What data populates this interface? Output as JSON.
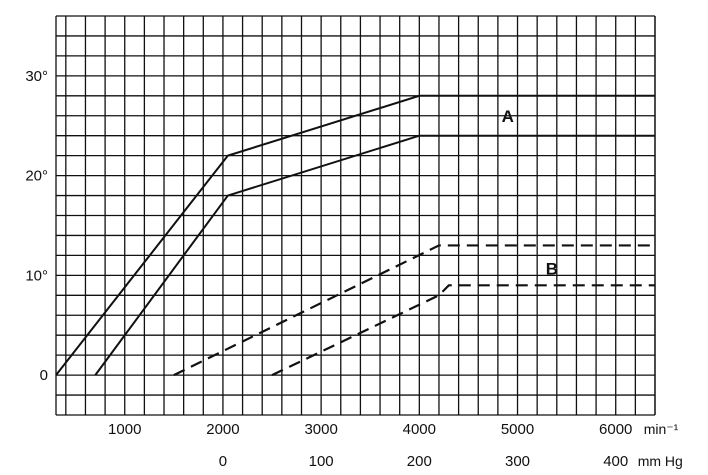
{
  "chart_data": {
    "type": "line",
    "title": "",
    "xlabel": "",
    "ylabel": "",
    "xlim": [
      300,
      6400
    ],
    "ylim": [
      -4,
      36
    ],
    "grid": true,
    "y_ticks": [
      {
        "value": 0,
        "label": "0"
      },
      {
        "value": 10,
        "label": "10°"
      },
      {
        "value": 20,
        "label": "20°"
      },
      {
        "value": 30,
        "label": "30°"
      }
    ],
    "x_ticks_rpm": {
      "values": [
        1000,
        2000,
        3000,
        4000,
        5000,
        6000
      ],
      "labels": [
        "1000",
        "2000",
        "3000",
        "4000",
        "5000",
        "6000"
      ],
      "unit": "min⁻¹"
    },
    "x_ticks_vacuum": {
      "rpm_positions": [
        2000,
        3000,
        4000,
        5000,
        6000
      ],
      "labels": [
        "0",
        "100",
        "200",
        "300",
        "400"
      ],
      "unit": "mm Hg"
    },
    "series": [
      {
        "name": "A",
        "style": "solid",
        "x": [
          300,
          2050,
          4000,
          6400
        ],
        "y": [
          0,
          22,
          28,
          28
        ]
      },
      {
        "name": "A",
        "style": "solid",
        "x": [
          700,
          2050,
          4000,
          6400
        ],
        "y": [
          0,
          18,
          24,
          24
        ]
      },
      {
        "name": "B",
        "style": "dashed",
        "x": [
          1500,
          4200,
          6400
        ],
        "y": [
          0,
          13,
          13
        ]
      },
      {
        "name": "B",
        "style": "dashed",
        "x": [
          2500,
          4200,
          4300,
          6400
        ],
        "y": [
          0,
          8,
          9,
          9
        ]
      }
    ],
    "annotations": [
      {
        "text": "A",
        "x": 4900,
        "y": 26
      },
      {
        "text": "B",
        "x": 5350,
        "y": 10.7
      }
    ]
  }
}
